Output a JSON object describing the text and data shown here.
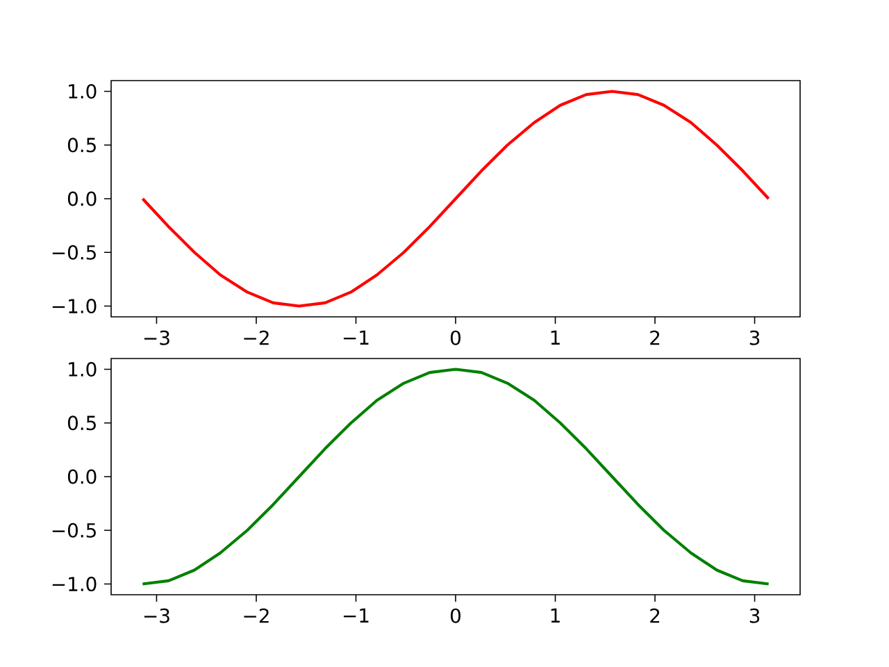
{
  "chart_data": [
    {
      "type": "line",
      "x": [
        -3.14,
        -2.88,
        -2.62,
        -2.36,
        -2.09,
        -1.83,
        -1.57,
        -1.31,
        -1.05,
        -0.79,
        -0.52,
        -0.26,
        0,
        0.26,
        0.52,
        0.79,
        1.05,
        1.31,
        1.57,
        1.83,
        2.09,
        2.36,
        2.62,
        2.88,
        3.14
      ],
      "series": [
        {
          "color": "#ff0000",
          "values": [
            0,
            -0.26,
            -0.5,
            -0.71,
            -0.87,
            -0.97,
            -1,
            -0.97,
            -0.87,
            -0.71,
            -0.5,
            -0.26,
            0,
            0.26,
            0.5,
            0.71,
            0.87,
            0.97,
            1,
            0.97,
            0.87,
            0.71,
            0.5,
            0.26,
            0
          ]
        }
      ],
      "xlim": [
        -3.456,
        3.456
      ],
      "ylim": [
        -1.1,
        1.1
      ],
      "xticks": [
        {
          "value": -3,
          "label": "−3"
        },
        {
          "value": -2,
          "label": "−2"
        },
        {
          "value": -1,
          "label": "−1"
        },
        0,
        1,
        2,
        3
      ],
      "yticks": [
        {
          "value": -1,
          "label": "−1.0"
        },
        {
          "value": -0.5,
          "label": "−0.5"
        },
        {
          "value": 0,
          "label": "0.0"
        },
        {
          "value": 0.5,
          "label": "0.5"
        },
        {
          "value": 1,
          "label": "1.0"
        }
      ]
    },
    {
      "type": "line",
      "x": [
        -3.14,
        -2.88,
        -2.62,
        -2.36,
        -2.09,
        -1.83,
        -1.57,
        -1.31,
        -1.05,
        -0.79,
        -0.52,
        -0.26,
        0,
        0.26,
        0.52,
        0.79,
        1.05,
        1.31,
        1.57,
        1.83,
        2.09,
        2.36,
        2.62,
        2.88,
        3.14
      ],
      "series": [
        {
          "color": "#008000",
          "values": [
            -1,
            -0.97,
            -0.87,
            -0.71,
            -0.5,
            -0.26,
            0,
            0.26,
            0.5,
            0.71,
            0.87,
            0.97,
            1,
            0.97,
            0.87,
            0.71,
            0.5,
            0.26,
            0,
            -0.26,
            -0.5,
            -0.71,
            -0.87,
            -0.97,
            -1
          ]
        }
      ],
      "xlim": [
        -3.456,
        3.456
      ],
      "ylim": [
        -1.1,
        1.1
      ],
      "xticks": [
        {
          "value": -3,
          "label": "−3"
        },
        {
          "value": -2,
          "label": "−2"
        },
        {
          "value": -1,
          "label": "−1"
        },
        0,
        1,
        2,
        3
      ],
      "yticks": [
        {
          "value": -1,
          "label": "−1.0"
        },
        {
          "value": -0.5,
          "label": "−0.5"
        },
        {
          "value": 0,
          "label": "0.0"
        },
        {
          "value": 0.5,
          "label": "0.5"
        },
        {
          "value": 1,
          "label": "1.0"
        }
      ]
    }
  ]
}
